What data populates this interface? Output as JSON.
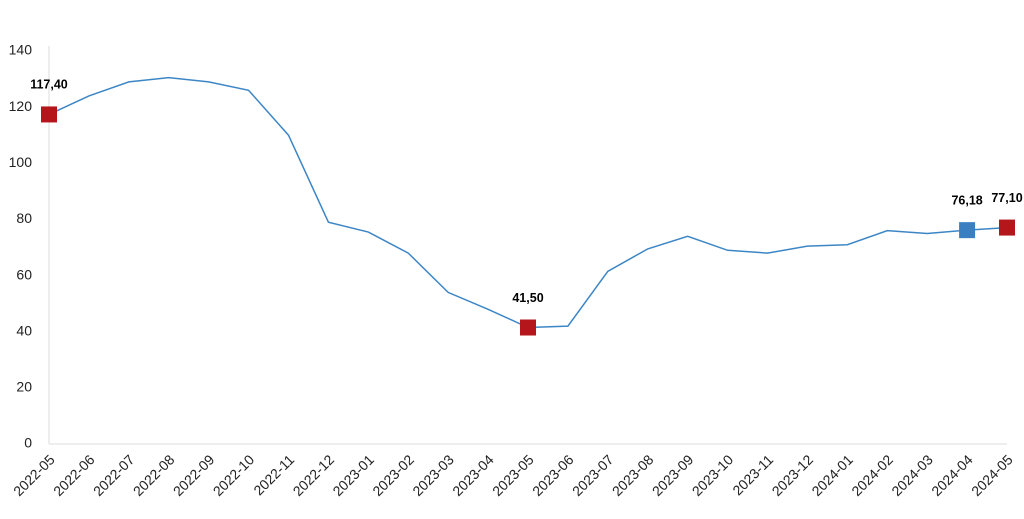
{
  "chart_data": {
    "type": "line",
    "categories": [
      "2022-05",
      "2022-06",
      "2022-07",
      "2022-08",
      "2022-09",
      "2022-10",
      "2022-11",
      "2022-12",
      "2023-01",
      "2023-02",
      "2023-03",
      "2023-04",
      "2023-05",
      "2023-06",
      "2023-07",
      "2023-08",
      "2023-09",
      "2023-10",
      "2023-11",
      "2023-12",
      "2024-01",
      "2024-02",
      "2024-03",
      "2024-04",
      "2024-05"
    ],
    "series": [
      {
        "color": "#3d86c6",
        "values": [
          117.4,
          124,
          129,
          130.5,
          129,
          126,
          110,
          79,
          75.5,
          68,
          54,
          48,
          41.5,
          42,
          61.5,
          69.5,
          74,
          69,
          68,
          70.5,
          71,
          76,
          75,
          76.18,
          77.1
        ],
        "value_labels": [
          "117,40",
          null,
          null,
          null,
          null,
          null,
          null,
          null,
          null,
          null,
          null,
          null,
          "41,50",
          null,
          null,
          null,
          null,
          null,
          null,
          null,
          null,
          null,
          null,
          "76,18",
          "77,10"
        ],
        "marker_colors": [
          "#b5161b",
          null,
          null,
          null,
          null,
          null,
          null,
          null,
          null,
          null,
          null,
          null,
          "#b5161b",
          null,
          null,
          null,
          null,
          null,
          null,
          null,
          null,
          null,
          null,
          "#3a7fc1",
          "#b5161b"
        ]
      }
    ],
    "ylim": [
      0,
      140
    ],
    "yticks": [
      0,
      20,
      40,
      60,
      80,
      100,
      120,
      140
    ],
    "grid": false
  }
}
